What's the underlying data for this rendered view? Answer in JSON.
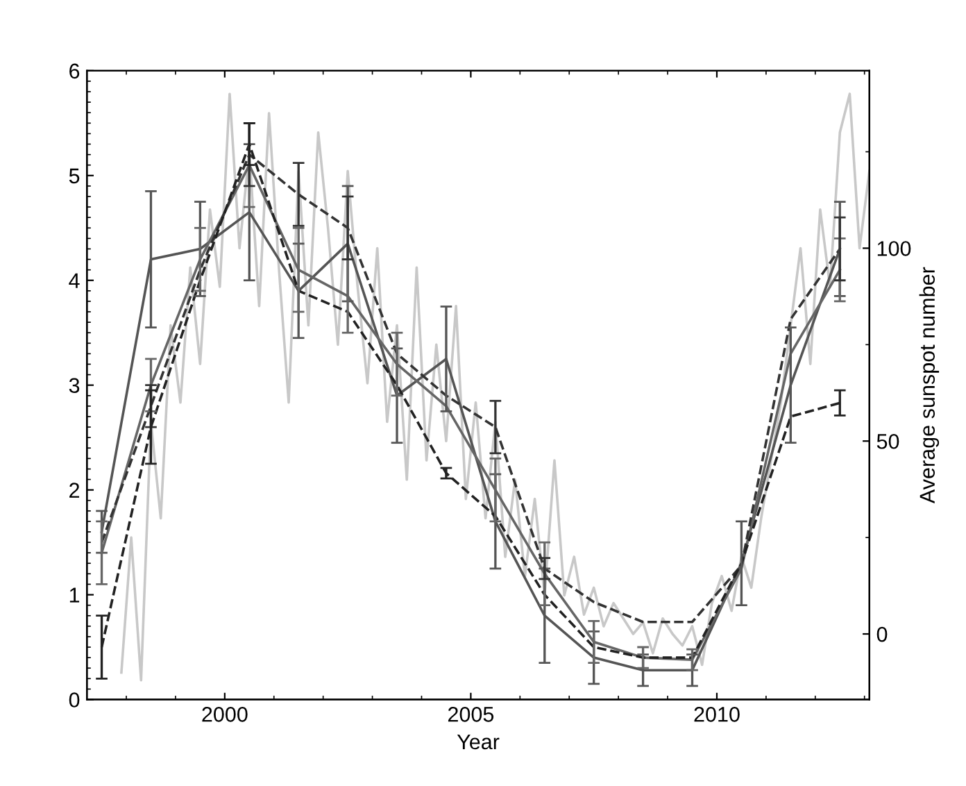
{
  "chart_data": {
    "type": "line",
    "xlabel": "Year",
    "y2label": "Average sunspot number",
    "xlim": [
      1997.2,
      2013.1
    ],
    "xticks": [
      2000,
      2005,
      2010
    ],
    "ylim": [
      0,
      6
    ],
    "yticks": [
      0,
      1,
      2,
      3,
      4,
      5,
      6
    ],
    "y2lim": [
      -17,
      146
    ],
    "y2ticks": [
      0,
      50,
      100
    ],
    "grid": false,
    "marker": "none",
    "series": [
      {
        "color": "#c8c8c8",
        "axis": "y2",
        "line_style": "solid",
        "x": [
          1997.9,
          1998.1,
          1998.3,
          1998.5,
          1998.7,
          1998.9,
          1999.1,
          1999.3,
          1999.5,
          1999.7,
          1999.9,
          2000.1,
          2000.3,
          2000.5,
          2000.7,
          2000.9,
          2001.1,
          2001.3,
          2001.5,
          2001.7,
          2001.9,
          2002.1,
          2002.3,
          2002.5,
          2002.7,
          2002.9,
          2003.1,
          2003.3,
          2003.5,
          2003.7,
          2003.9,
          2004.1,
          2004.3,
          2004.5,
          2004.7,
          2004.9,
          2005.1,
          2005.3,
          2005.5,
          2005.7,
          2005.9,
          2006.1,
          2006.3,
          2006.5,
          2006.7,
          2006.9,
          2007.1,
          2007.3,
          2007.5,
          2007.7,
          2007.9,
          2008.1,
          2008.3,
          2008.5,
          2008.7,
          2008.9,
          2009.1,
          2009.3,
          2009.5,
          2009.7,
          2009.9,
          2010.1,
          2010.3,
          2010.5,
          2010.7,
          2010.9,
          2011.1,
          2011.3,
          2011.5,
          2011.7,
          2011.9,
          2012.1,
          2012.3,
          2012.5,
          2012.7,
          2012.9,
          2013.1
        ],
        "values": [
          -10,
          25,
          -12,
          55,
          30,
          80,
          60,
          95,
          70,
          110,
          90,
          140,
          100,
          125,
          85,
          135,
          95,
          60,
          120,
          80,
          130,
          105,
          75,
          120,
          90,
          65,
          100,
          55,
          80,
          40,
          95,
          45,
          75,
          50,
          85,
          35,
          60,
          30,
          55,
          20,
          40,
          15,
          35,
          10,
          45,
          10,
          20,
          5,
          12,
          2,
          8,
          4,
          0,
          3,
          -5,
          4,
          0,
          -3,
          2,
          -8,
          8,
          15,
          6,
          20,
          12,
          30,
          45,
          60,
          80,
          100,
          70,
          110,
          90,
          130,
          140,
          100,
          120
        ]
      },
      {
        "color": "#555555",
        "line_style": "solid",
        "x": [
          1997.5,
          1998.5,
          1999.5,
          2000.5,
          2001.5,
          2002.5,
          2003.5,
          2004.5,
          2005.5,
          2006.5,
          2007.5,
          2008.5,
          2009.5,
          2010.5,
          2011.5,
          2012.5
        ],
        "values": [
          1.6,
          4.2,
          4.3,
          4.65,
          3.9,
          4.35,
          2.9,
          3.25,
          1.7,
          0.8,
          0.4,
          0.28,
          0.28,
          1.3,
          3.0,
          4.3
        ],
        "errors": [
          0.2,
          0.65,
          0.45,
          0.65,
          0.45,
          0.55,
          0.45,
          0.5,
          0.45,
          0.45,
          0.25,
          0.15,
          0.15,
          0.4,
          0.55,
          0.45
        ]
      },
      {
        "color": "#666666",
        "line_style": "solid",
        "x": [
          1997.5,
          1998.5,
          1999.5,
          2000.5,
          2001.5,
          2002.5,
          2003.5,
          2004.5,
          2005.5,
          2006.5,
          2007.5,
          2008.5,
          2009.5,
          2010.5,
          2011.5,
          2012.5
        ],
        "values": [
          1.4,
          3.0,
          4.2,
          5.1,
          4.1,
          3.85,
          3.2,
          2.8,
          2.0,
          1.2,
          0.55,
          0.4,
          0.38,
          1.25,
          3.3,
          4.1
        ],
        "errors": [
          0.3,
          0.25,
          0.3,
          0.4,
          0.4,
          0.35,
          0.3,
          null,
          0.3,
          0.3,
          0.2,
          0.1,
          0.1,
          null,
          null,
          0.3
        ]
      },
      {
        "color": "#333333",
        "line_style": "dashed",
        "x": [
          1997.5,
          1998.5,
          1999.5,
          2000.5,
          2001.5,
          2002.5,
          2003.5,
          2004.5,
          2005.5,
          2006.5,
          2007.5,
          2008.5,
          2009.5,
          2010.5,
          2011.5,
          2012.5
        ],
        "values": [
          1.5,
          2.8,
          4.1,
          5.2,
          4.82,
          4.5,
          3.3,
          2.9,
          2.6,
          1.25,
          0.93,
          0.74,
          0.74,
          1.28,
          3.63,
          4.3
        ],
        "errors": [
          null,
          0.2,
          null,
          0.3,
          0.3,
          0.3,
          null,
          null,
          0.25,
          0.1,
          null,
          null,
          null,
          null,
          null,
          0.3
        ]
      },
      {
        "color": "#222222",
        "line_style": "dashed",
        "x": [
          1997.5,
          1998.5,
          1999.5,
          2000.5,
          2001.5,
          2002.5,
          2003.5,
          2004.5,
          2005.5,
          2006.5,
          2007.5,
          2008.5,
          2009.5,
          2010.5,
          2011.5,
          2012.5
        ],
        "values": [
          0.5,
          2.6,
          4.0,
          5.3,
          3.9,
          3.7,
          3.0,
          2.16,
          1.75,
          1.0,
          0.5,
          0.4,
          0.4,
          1.3,
          2.7,
          2.83
        ],
        "errors": [
          0.3,
          0.35,
          null,
          0.2,
          null,
          null,
          null,
          0.05,
          null,
          null,
          null,
          null,
          null,
          null,
          null,
          0.12
        ]
      }
    ]
  }
}
